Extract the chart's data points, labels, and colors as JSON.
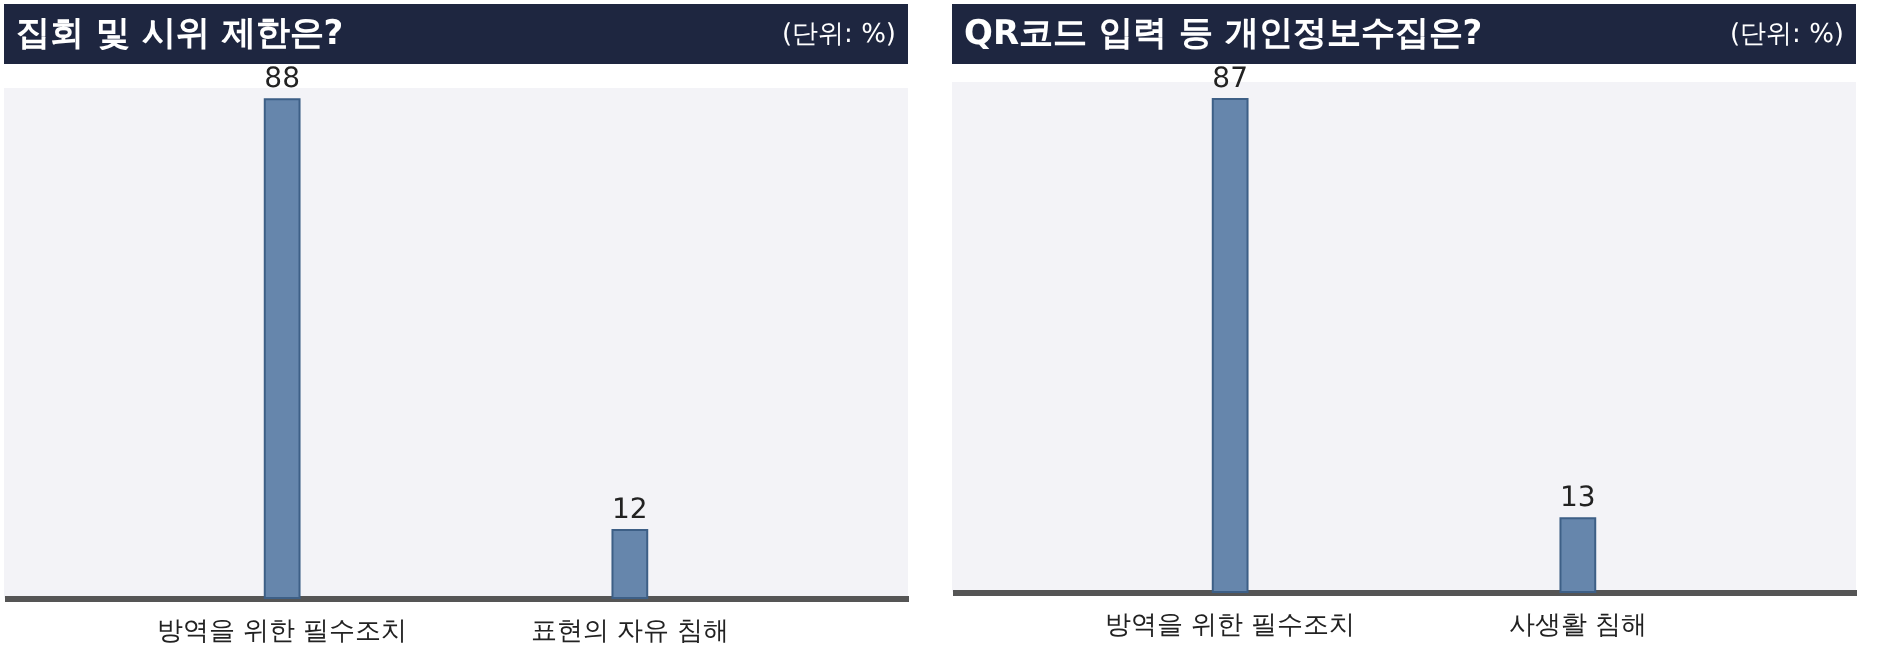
{
  "chart_data": [
    {
      "type": "bar",
      "title": "집회 및 시위 제한은?",
      "subtitle": "(단위: %)",
      "categories": [
        "방역을 위한 필수조치",
        "표현의 자유 침해"
      ],
      "values": [
        88,
        12
      ],
      "color": "#6686ac",
      "data_labels": true
    },
    {
      "type": "bar",
      "title": "QR코드 입력 등 개인정보수집은?",
      "subtitle": "(단위: %)",
      "categories": [
        "방역을 위한 필수조치",
        "사생활 침해"
      ],
      "values": [
        87,
        13
      ],
      "color": "#6686ac",
      "data_labels": true
    }
  ]
}
